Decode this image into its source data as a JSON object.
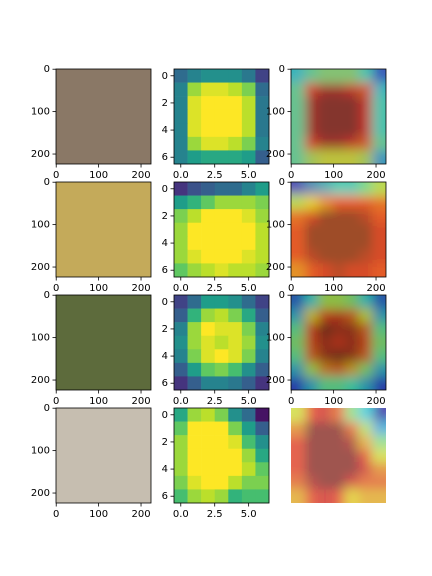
{
  "image_axis": {
    "xlim": [
      -0.5,
      223.5
    ],
    "ylim": [
      223.5,
      -0.5
    ],
    "xticks": [
      0,
      100,
      200
    ],
    "yticks": [
      0,
      100,
      200
    ]
  },
  "heatmap_axis": {
    "xlim": [
      -0.5,
      6.5
    ],
    "ylim": [
      6.5,
      -0.5
    ],
    "xticks": [
      {
        "value": 0,
        "label": "0.0"
      },
      {
        "value": 2.5,
        "label": "2.5"
      },
      {
        "value": 5,
        "label": "5.0"
      }
    ],
    "yticks": [
      0,
      2,
      4,
      6
    ],
    "colormap": "viridis",
    "overlay_colormap": "jet",
    "vlim": [
      0,
      1
    ]
  },
  "rows": [
    {
      "overlay_axes": true,
      "heatmap": [
        [
          0.35,
          0.45,
          0.5,
          0.5,
          0.5,
          0.4,
          0.2
        ],
        [
          0.45,
          0.85,
          0.95,
          0.95,
          0.9,
          0.8,
          0.35
        ],
        [
          0.45,
          0.95,
          1,
          1,
          1,
          0.9,
          0.4
        ],
        [
          0.45,
          0.95,
          1,
          1,
          1,
          0.9,
          0.4
        ],
        [
          0.45,
          0.95,
          1,
          1,
          1,
          0.9,
          0.4
        ],
        [
          0.45,
          0.85,
          0.95,
          0.95,
          0.9,
          0.8,
          0.45
        ],
        [
          0.45,
          0.55,
          0.6,
          0.6,
          0.6,
          0.55,
          0.3
        ]
      ]
    },
    {
      "overlay_axes": true,
      "heatmap": [
        [
          0.15,
          0.25,
          0.3,
          0.35,
          0.35,
          0.45,
          0.55
        ],
        [
          0.55,
          0.65,
          0.75,
          0.85,
          0.85,
          0.85,
          0.8
        ],
        [
          0.8,
          0.9,
          1,
          1,
          1,
          0.95,
          0.85
        ],
        [
          0.85,
          1,
          1,
          1,
          1,
          1,
          0.9
        ],
        [
          0.85,
          1,
          1,
          1,
          1,
          1,
          0.9
        ],
        [
          0.85,
          0.95,
          1,
          1,
          1,
          0.95,
          0.9
        ],
        [
          0.75,
          0.85,
          0.9,
          0.95,
          0.9,
          0.9,
          0.85
        ]
      ]
    },
    {
      "overlay_axes": true,
      "heatmap": [
        [
          0.2,
          0.35,
          0.55,
          0.55,
          0.5,
          0.35,
          0.2
        ],
        [
          0.3,
          0.65,
          0.85,
          0.9,
          0.8,
          0.6,
          0.3
        ],
        [
          0.45,
          0.85,
          1,
          0.95,
          0.95,
          0.8,
          0.45
        ],
        [
          0.5,
          0.85,
          0.95,
          0.9,
          0.95,
          0.85,
          0.5
        ],
        [
          0.45,
          0.8,
          0.95,
          1,
          0.95,
          0.8,
          0.45
        ],
        [
          0.3,
          0.55,
          0.75,
          0.8,
          0.7,
          0.5,
          0.3
        ],
        [
          0.15,
          0.3,
          0.45,
          0.45,
          0.4,
          0.3,
          0.15
        ]
      ]
    },
    {
      "overlay_axes": false,
      "heatmap": [
        [
          0.6,
          0.85,
          0.9,
          0.8,
          0.5,
          0.35,
          0.05
        ],
        [
          0.75,
          1,
          1,
          1,
          0.8,
          0.55,
          0.3
        ],
        [
          0.85,
          1,
          1,
          1,
          0.95,
          0.7,
          0.5
        ],
        [
          0.85,
          1,
          1,
          1,
          1,
          0.85,
          0.6
        ],
        [
          0.85,
          1,
          1,
          1,
          1,
          0.9,
          0.75
        ],
        [
          0.8,
          0.95,
          1,
          1,
          0.9,
          0.8,
          0.8
        ],
        [
          0.7,
          0.85,
          0.9,
          0.85,
          0.65,
          0.7,
          0.7
        ]
      ]
    }
  ]
}
